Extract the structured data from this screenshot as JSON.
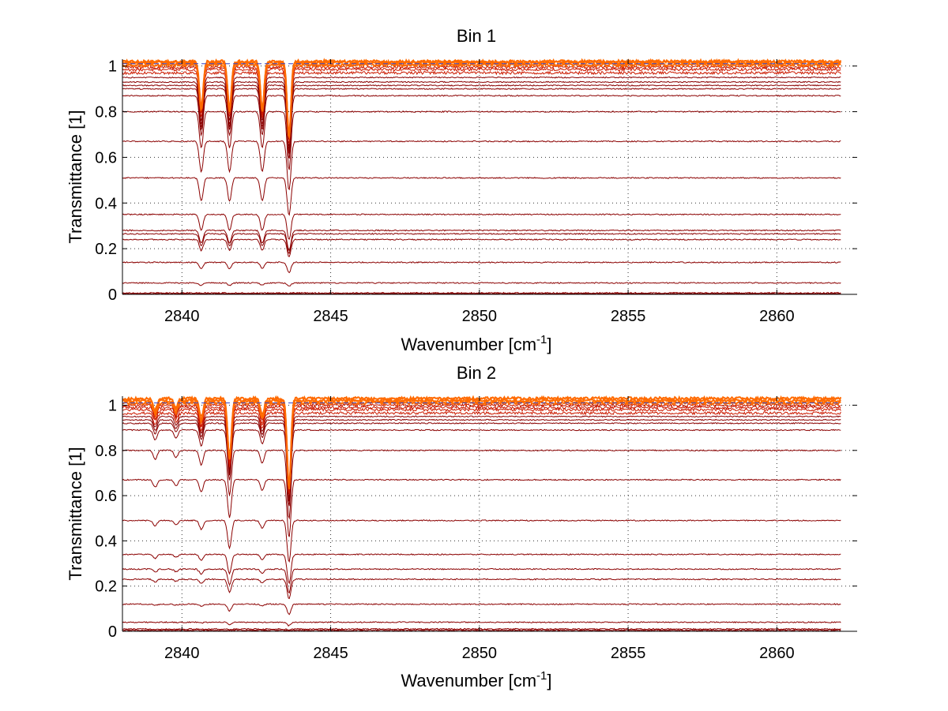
{
  "figure": {
    "background": "#ffffff",
    "grid_color": "#333333",
    "trace_color_low": "#8b0000",
    "trace_color_mid": "#cc1a00",
    "trace_color_top": "#ff6a00",
    "reference_line_color": "#3344cc"
  },
  "chart_data": [
    {
      "type": "line",
      "title": "Bin 1",
      "xlabel": "Wavenumber [cm",
      "xlabel_superscript": "-1",
      "xlabel_suffix": "]",
      "ylabel": "Transmittance [1]",
      "xlim": [
        2838.0,
        2862.7
      ],
      "ylim": [
        0,
        1.03
      ],
      "xticks": [
        2840,
        2845,
        2850,
        2855,
        2860
      ],
      "xtick_labels": [
        "2840",
        "2845",
        "2850",
        "2855",
        "2860"
      ],
      "yticks": [
        0,
        0.2,
        0.4,
        0.6,
        0.8,
        1
      ],
      "ytick_labels": [
        "0",
        "0.2",
        "0.4",
        "0.6",
        "0.8",
        "1"
      ],
      "grid": true,
      "series_baselines": [
        0.0,
        0.003,
        0.006,
        0.05,
        0.14,
        0.24,
        0.265,
        0.28,
        0.35,
        0.51,
        0.67,
        0.8,
        0.87,
        0.9,
        0.915,
        0.93,
        0.95,
        0.97,
        0.985,
        0.995,
        1.005,
        1.015,
        1.02
      ],
      "absorption_lines": [
        {
          "center": 2840.65,
          "relative_depth": 0.2
        },
        {
          "center": 2841.6,
          "relative_depth": 0.2
        },
        {
          "center": 2842.7,
          "relative_depth": 0.2
        },
        {
          "center": 2843.6,
          "relative_depth": 0.32
        }
      ]
    },
    {
      "type": "line",
      "title": "Bin 2",
      "xlabel": "Wavenumber [cm",
      "xlabel_superscript": "-1",
      "xlabel_suffix": "]",
      "ylabel": "Transmittance [1]",
      "xlim": [
        2838.0,
        2862.7
      ],
      "ylim": [
        0,
        1.04
      ],
      "xticks": [
        2840,
        2845,
        2850,
        2855,
        2860
      ],
      "xtick_labels": [
        "2840",
        "2845",
        "2850",
        "2855",
        "2860"
      ],
      "yticks": [
        0,
        0.2,
        0.4,
        0.6,
        0.8,
        1
      ],
      "ytick_labels": [
        "0",
        "0.2",
        "0.4",
        "0.6",
        "0.8",
        "1"
      ],
      "grid": true,
      "series_baselines": [
        0.0,
        0.005,
        0.01,
        0.04,
        0.12,
        0.23,
        0.275,
        0.34,
        0.49,
        0.67,
        0.8,
        0.89,
        0.92,
        0.935,
        0.95,
        0.965,
        0.98,
        0.99,
        1.0,
        1.01,
        1.02,
        1.03
      ],
      "absorption_lines": [
        {
          "center": 2839.1,
          "relative_depth": 0.05
        },
        {
          "center": 2839.8,
          "relative_depth": 0.04
        },
        {
          "center": 2840.65,
          "relative_depth": 0.08
        },
        {
          "center": 2841.6,
          "relative_depth": 0.25
        },
        {
          "center": 2842.7,
          "relative_depth": 0.07
        },
        {
          "center": 2843.6,
          "relative_depth": 0.38
        }
      ]
    }
  ]
}
